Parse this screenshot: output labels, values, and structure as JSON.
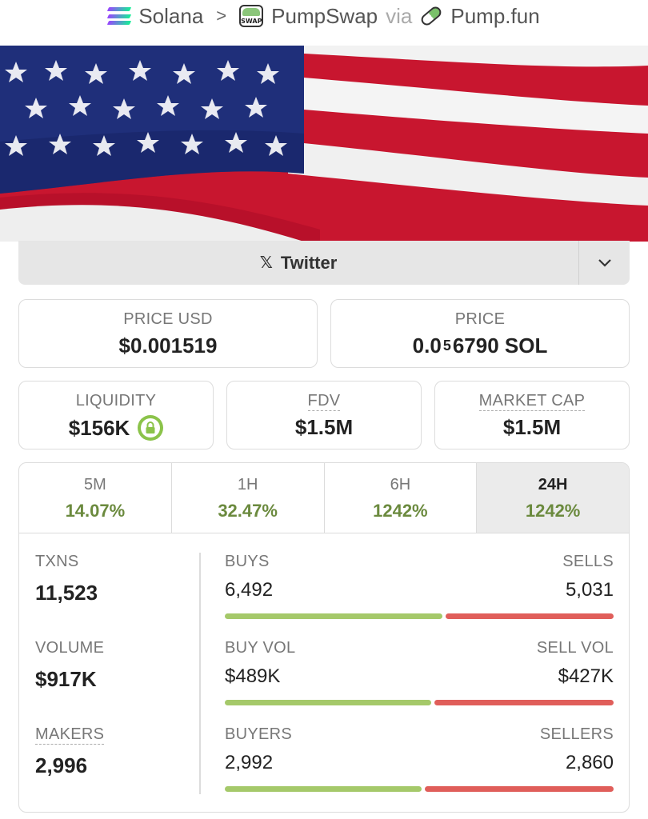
{
  "breadcrumb": {
    "chain": "Solana",
    "dex": "PumpSwap",
    "via": "via",
    "source": "Pump.fun",
    "swap_icon_text": "SWAP"
  },
  "twitter": {
    "icon": "x-icon",
    "label": "Twitter"
  },
  "price_usd": {
    "label": "PRICE USD",
    "value": "$0.001519"
  },
  "price": {
    "label": "PRICE",
    "prefix": "0.0",
    "zeros": "5",
    "suffix": "6790 SOL"
  },
  "liquidity": {
    "label": "LIQUIDITY",
    "value": "$156K"
  },
  "fdv": {
    "label": "FDV",
    "value": "$1.5M"
  },
  "market_cap": {
    "label": "MARKET CAP",
    "value": "$1.5M"
  },
  "tabs": [
    {
      "label": "5M",
      "value": "14.07%"
    },
    {
      "label": "1H",
      "value": "32.47%"
    },
    {
      "label": "6H",
      "value": "1242%"
    },
    {
      "label": "24H",
      "value": "1242%"
    }
  ],
  "active_tab": "24H",
  "stats": {
    "txns": {
      "label": "TXNS",
      "value": "11,523"
    },
    "volume": {
      "label": "VOLUME",
      "value": "$917K"
    },
    "makers": {
      "label": "MAKERS",
      "value": "2,996"
    }
  },
  "splits": {
    "txns": {
      "left_label": "BUYS",
      "right_label": "SELLS",
      "left_value": "6,492",
      "right_value": "5,031",
      "buy_fraction": 0.563
    },
    "volume": {
      "left_label": "BUY VOL",
      "right_label": "SELL VOL",
      "left_value": "$489K",
      "right_value": "$427K",
      "buy_fraction": 0.534
    },
    "makers": {
      "left_label": "BUYERS",
      "right_label": "SELLERS",
      "left_value": "2,992",
      "right_value": "2,860",
      "buy_fraction": 0.511
    }
  },
  "colors": {
    "positive": "#6b8a3e",
    "buy_bar": "#a5c96a",
    "sell_bar": "#e05e5a",
    "lock": "#8bc34a"
  }
}
